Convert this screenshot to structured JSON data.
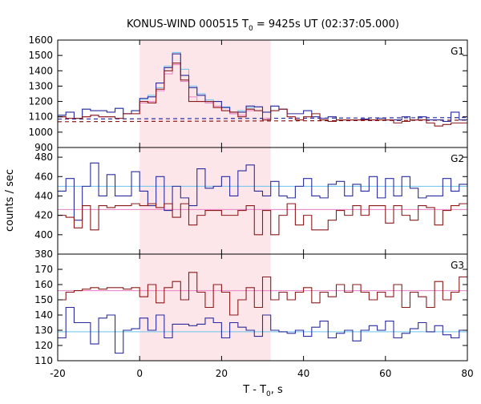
{
  "chart_data": {
    "type": "line",
    "title": "KONUS-WIND 000515 T",
    "title_sub": "0",
    "title_rest": " = 9425s UT (02:37:05.000)",
    "xlabel": "T - T",
    "xlabel_sub": "0",
    "xlabel_rest": ", s",
    "ylabel": "counts / sec",
    "xlim": [
      -20,
      80
    ],
    "xticks": [
      -20,
      0,
      20,
      40,
      60,
      80
    ],
    "shaded_interval": [
      0,
      32
    ],
    "colors": {
      "blue": "#2b2b9e",
      "red": "#8b1a1a",
      "light_blue": "#67c3ee",
      "pink": "#e87ec7",
      "shade": "#fde6e9"
    },
    "panels": [
      {
        "label": "G1",
        "ylim": [
          900,
          1600
        ],
        "yticks": [
          900,
          1000,
          1100,
          1200,
          1300,
          1400,
          1500,
          1600
        ],
        "bin_edges": [
          -20,
          -18,
          -16,
          -14,
          -12,
          -10,
          -8,
          -6,
          -4,
          -2,
          0,
          2,
          4,
          6,
          8,
          10,
          12,
          14,
          16,
          18,
          20,
          22,
          24,
          26,
          28,
          30,
          32,
          34,
          36,
          38,
          40,
          42,
          44,
          46,
          48,
          50,
          52,
          54,
          56,
          58,
          60,
          62,
          64,
          66,
          68,
          70,
          72,
          74,
          76,
          78,
          80
        ],
        "series": [
          {
            "color": "blue",
            "values": [
              1110,
              1130,
              1090,
              1150,
              1140,
              1140,
              1130,
              1155,
              1120,
              1140,
              1220,
              1230,
              1320,
              1420,
              1510,
              1370,
              1290,
              1240,
              1200,
              1200,
              1160,
              1130,
              1130,
              1170,
              1165,
              1130,
              1170,
              1150,
              1120,
              1120,
              1140,
              1100,
              1090,
              1100,
              1080,
              1080,
              1080,
              1085,
              1080,
              1090,
              1080,
              1080,
              1100,
              1080,
              1100,
              1080,
              1080,
              1070,
              1130,
              1080
            ]
          },
          {
            "color": "red",
            "values": [
              1100,
              1090,
              1090,
              1100,
              1110,
              1100,
              1100,
              1090,
              1120,
              1120,
              1200,
              1190,
              1280,
              1400,
              1450,
              1340,
              1200,
              1200,
              1200,
              1160,
              1140,
              1130,
              1100,
              1150,
              1140,
              1080,
              1140,
              1150,
              1100,
              1080,
              1100,
              1120,
              1080,
              1070,
              1080,
              1080,
              1080,
              1080,
              1080,
              1080,
              1080,
              1060,
              1070,
              1080,
              1080,
              1060,
              1040,
              1050,
              1060,
              1060
            ]
          }
        ],
        "flat_series": [
          {
            "color": "light_blue",
            "values": [
              1110,
              1130,
              1090,
              1150,
              1140,
              1140,
              1130,
              1155,
              1120,
              1140,
              1215,
              1240,
              1290,
              1430,
              1520,
              1410,
              1300,
              1250,
              1210,
              1200,
              1165,
              1120,
              1140,
              1160,
              1165,
              1130,
              1170
            ]
          },
          {
            "color": "pink",
            "values": [
              1100,
              1090,
              1090,
              1100,
              1110,
              1100,
              1100,
              1090,
              1120,
              1120,
              1190,
              1200,
              1270,
              1380,
              1440,
              1330,
              1230,
              1200,
              1190,
              1170,
              1140,
              1120,
              1110,
              1140,
              1140,
              1090,
              1140
            ]
          }
        ],
        "background_lines": [
          {
            "color": "blue",
            "style": "dashed",
            "y_start": 1085,
            "y_end": 1095
          },
          {
            "color": "red",
            "style": "dashed",
            "y_start": 1068,
            "y_end": 1078
          }
        ]
      },
      {
        "label": "G2",
        "ylim": [
          380,
          490
        ],
        "yticks": [
          380,
          400,
          420,
          440,
          460,
          480
        ],
        "bin_edges": [
          -20,
          -18,
          -16,
          -14,
          -12,
          -10,
          -8,
          -6,
          -4,
          -2,
          0,
          2,
          4,
          6,
          8,
          10,
          12,
          14,
          16,
          18,
          20,
          22,
          24,
          26,
          28,
          30,
          32,
          34,
          36,
          38,
          40,
          42,
          44,
          46,
          48,
          50,
          52,
          54,
          56,
          58,
          60,
          62,
          64,
          66,
          68,
          70,
          72,
          74,
          76,
          78,
          80
        ],
        "series": [
          {
            "color": "blue",
            "values": [
              445,
              458,
              415,
              450,
              474,
              440,
              462,
              440,
              440,
              465,
              445,
              430,
              460,
              425,
              450,
              438,
              430,
              468,
              448,
              450,
              460,
              440,
              466,
              472,
              445,
              440,
              455,
              440,
              438,
              450,
              458,
              440,
              438,
              452,
              455,
              440,
              452,
              445,
              460,
              438,
              458,
              440,
              460,
              448,
              438,
              440,
              440,
              458,
              445,
              452
            ]
          },
          {
            "color": "red",
            "values": [
              420,
              418,
              407,
              430,
              405,
              430,
              428,
              430,
              430,
              432,
              430,
              432,
              428,
              432,
              418,
              432,
              410,
              420,
              425,
              425,
              420,
              420,
              425,
              430,
              400,
              425,
              400,
              420,
              432,
              410,
              420,
              405,
              405,
              415,
              425,
              420,
              430,
              420,
              430,
              430,
              412,
              430,
              420,
              415,
              430,
              428,
              410,
              425,
              430,
              432
            ]
          }
        ],
        "fit_lines": [
          {
            "color": "light_blue",
            "y": 450
          },
          {
            "color": "pink",
            "y": 426
          }
        ]
      },
      {
        "label": "G3",
        "ylim": [
          110,
          180
        ],
        "yticks": [
          110,
          120,
          130,
          140,
          150,
          160,
          170
        ],
        "bin_edges": [
          -20,
          -18,
          -16,
          -14,
          -12,
          -10,
          -8,
          -6,
          -4,
          -2,
          0,
          2,
          4,
          6,
          8,
          10,
          12,
          14,
          16,
          18,
          20,
          22,
          24,
          26,
          28,
          30,
          32,
          34,
          36,
          38,
          40,
          42,
          44,
          46,
          48,
          50,
          52,
          54,
          56,
          58,
          60,
          62,
          64,
          66,
          68,
          70,
          72,
          74,
          76,
          78,
          80
        ],
        "series": [
          {
            "color": "blue",
            "values": [
              125,
              145,
              135,
              135,
              121,
              138,
              140,
              115,
              130,
              131,
              138,
              130,
              140,
              125,
              134,
              134,
              133,
              134,
              138,
              135,
              125,
              135,
              132,
              130,
              126,
              140,
              130,
              129,
              128,
              130,
              126,
              132,
              136,
              125,
              128,
              130,
              123,
              130,
              133,
              130,
              136,
              125,
              128,
              131,
              135,
              129,
              133,
              127,
              125,
              130
            ]
          },
          {
            "color": "red",
            "values": [
              150,
              155,
              156,
              157,
              158,
              157,
              158,
              158,
              157,
              158,
              152,
              160,
              148,
              158,
              162,
              150,
              168,
              155,
              145,
              160,
              155,
              140,
              150,
              158,
              145,
              165,
              150,
              155,
              150,
              155,
              158,
              148,
              155,
              152,
              160,
              155,
              160,
              155,
              150,
              155,
              152,
              160,
              145,
              155,
              152,
              145,
              162,
              150,
              155,
              165
            ]
          }
        ],
        "fit_lines": [
          {
            "color": "light_blue",
            "y": 129
          },
          {
            "color": "pink",
            "y": 156
          }
        ]
      }
    ]
  }
}
